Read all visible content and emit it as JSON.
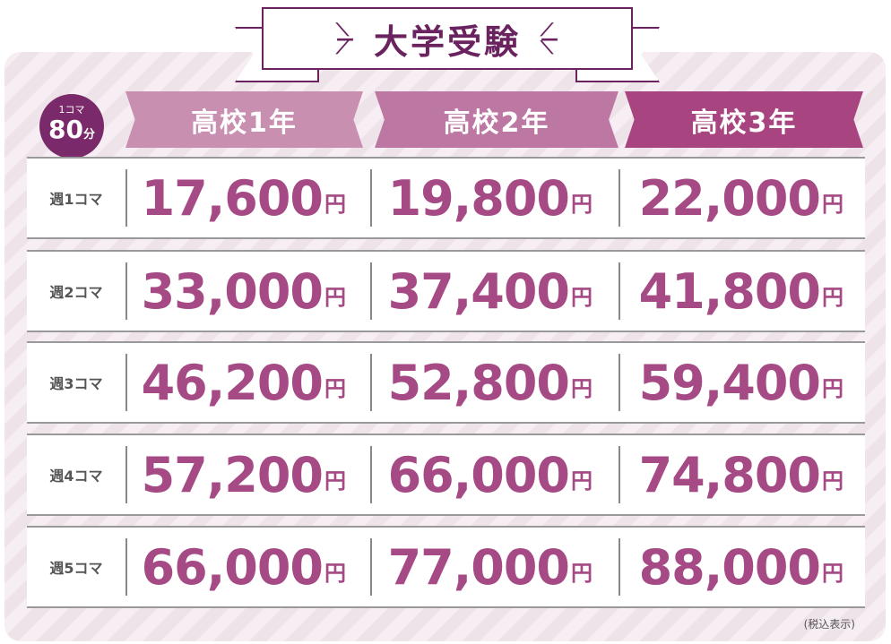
{
  "title": "大学受験",
  "badge": {
    "top": "1コマ",
    "value": "80",
    "unit": "分"
  },
  "columns": [
    {
      "label": "高校1年",
      "color": "#c98fb0"
    },
    {
      "label": "高校2年",
      "color": "#bd77a3"
    },
    {
      "label": "高校3年",
      "color": "#a8447f"
    }
  ],
  "currency": "円",
  "rows": [
    {
      "label": "週1コマ",
      "prices": [
        "17,600",
        "19,800",
        "22,000"
      ]
    },
    {
      "label": "週2コマ",
      "prices": [
        "33,000",
        "37,400",
        "41,800"
      ]
    },
    {
      "label": "週3コマ",
      "prices": [
        "46,200",
        "52,800",
        "59,400"
      ]
    },
    {
      "label": "週4コマ",
      "prices": [
        "57,200",
        "66,000",
        "74,800"
      ]
    },
    {
      "label": "週5コマ",
      "prices": [
        "66,000",
        "77,000",
        "88,000"
      ]
    }
  ],
  "note": "(税込表示)"
}
